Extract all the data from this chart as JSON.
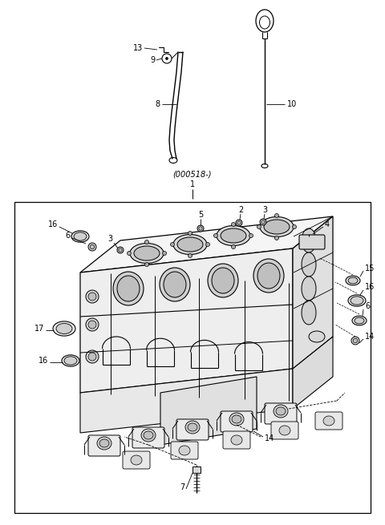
{
  "fig_width": 4.8,
  "fig_height": 6.55,
  "dpi": 100,
  "bg": "#ffffff",
  "lc": "#000000",
  "gray1": "#f2f2f2",
  "gray2": "#e0e0e0",
  "gray3": "#c8c8c8",
  "gray4": "#b0b0b0",
  "annotation": "(000518-)",
  "label1": "1",
  "fs": 7.0
}
